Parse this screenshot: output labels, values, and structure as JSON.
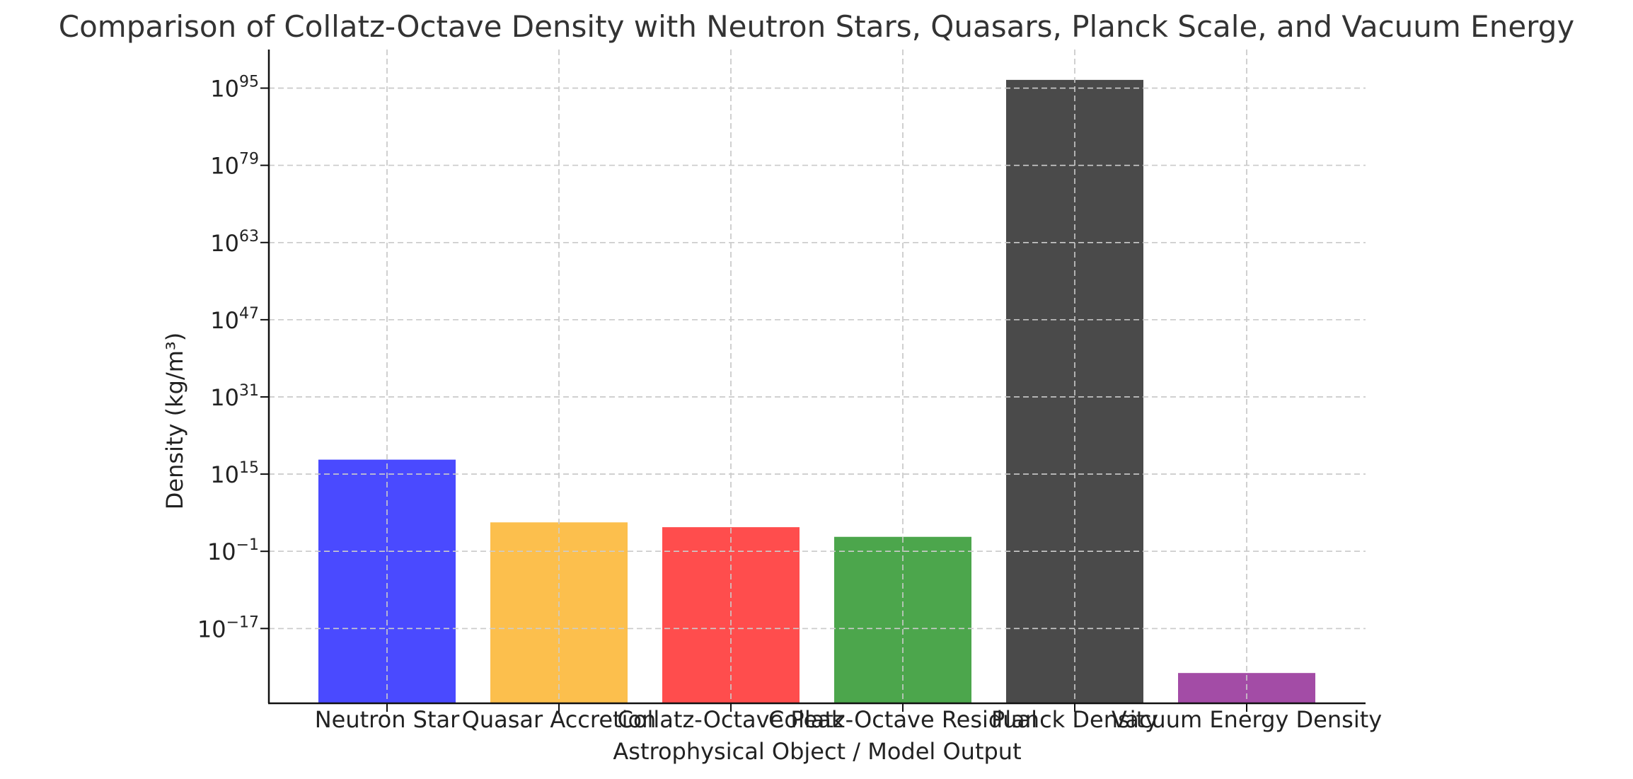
{
  "chart_data": {
    "type": "bar",
    "title": "Comparison of Collatz-Octave Density with Neutron Stars, Quasars, Planck Scale, and Vacuum Energy",
    "xlabel": "Astrophysical Object / Model Output",
    "ylabel": "Density (kg/m³)",
    "y_scale": "log",
    "ylim_exponent": [
      -32.5,
      103
    ],
    "yticks": [
      {
        "base": "10",
        "exp": "−17",
        "value_exp": -17
      },
      {
        "base": "10",
        "exp": "−1",
        "value_exp": -1
      },
      {
        "base": "10",
        "exp": "15",
        "value_exp": 15
      },
      {
        "base": "10",
        "exp": "31",
        "value_exp": 31
      },
      {
        "base": "10",
        "exp": "47",
        "value_exp": 47
      },
      {
        "base": "10",
        "exp": "63",
        "value_exp": 63
      },
      {
        "base": "10",
        "exp": "79",
        "value_exp": 79
      },
      {
        "base": "10",
        "exp": "95",
        "value_exp": 95
      }
    ],
    "categories": [
      "Neutron Star",
      "Quasar Accretion",
      "Collatz-Octave Peak",
      "Collatz-Octave Residual",
      "Planck Density",
      "Vacuum Energy Density"
    ],
    "values": [
      1e+18,
      100000.0,
      10000.0,
      100.0,
      5.1e+96,
      6e-27
    ],
    "colors": [
      "#4a4aff",
      "#fcbf4d",
      "#ff4d4d",
      "#4ca64c",
      "#4a4a4a",
      "#a34ca6"
    ],
    "grid": true,
    "legend": "none"
  }
}
